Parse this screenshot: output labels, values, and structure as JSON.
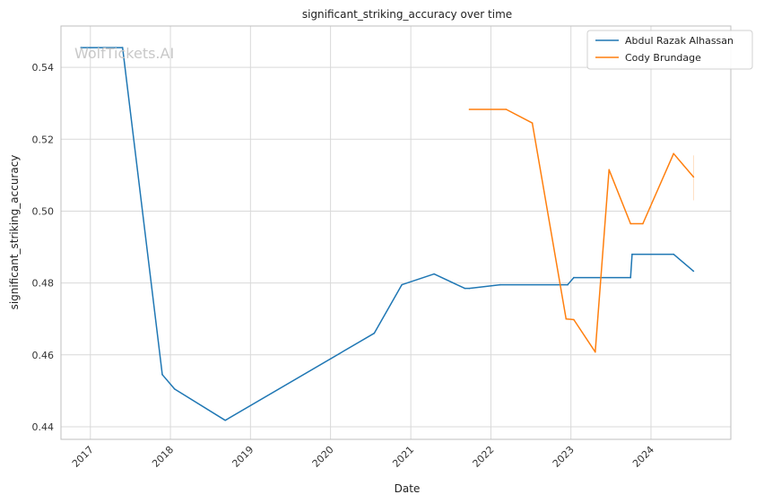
{
  "watermark": "WolfTickets.AI",
  "chart_data": {
    "type": "line",
    "title": "significant_striking_accuracy over time",
    "xlabel": "Date",
    "ylabel": "significant_striking_accuracy",
    "x_ticks": [
      "2017",
      "2018",
      "2019",
      "2020",
      "2021",
      "2022",
      "2023",
      "2024"
    ],
    "y_ticks": [
      "0.44",
      "0.46",
      "0.48",
      "0.50",
      "0.52",
      "0.54"
    ],
    "xlim": [
      "2016-08-20",
      "2024-12-30"
    ],
    "ylim": [
      0.4365,
      0.5515
    ],
    "grid": true,
    "legend_position": "top-right",
    "series": [
      {
        "name": "Abdul Razak Alhassan",
        "color": "#1f77b4",
        "points": [
          [
            "2016-11-19",
            0.5455
          ],
          [
            "2017-05-28",
            0.5455
          ],
          [
            "2017-11-25",
            0.4545
          ],
          [
            "2018-01-20",
            0.4505
          ],
          [
            "2018-09-08",
            0.4418
          ],
          [
            "2020-07-18",
            0.466
          ],
          [
            "2020-11-21",
            0.4795
          ],
          [
            "2021-04-17",
            0.4825
          ],
          [
            "2021-09-04",
            0.4785
          ],
          [
            "2021-09-25",
            0.4785
          ],
          [
            "2022-02-12",
            0.4795
          ],
          [
            "2022-12-17",
            0.4795
          ],
          [
            "2023-01-14",
            0.4815
          ],
          [
            "2023-09-30",
            0.4815
          ],
          [
            "2023-10-07",
            0.488
          ],
          [
            "2024-04-13",
            0.488
          ],
          [
            "2024-07-13",
            0.4833
          ]
        ]
      },
      {
        "name": "Cody Brundage",
        "color": "#ff7f0e",
        "points": [
          [
            "2021-09-25",
            0.5283
          ],
          [
            "2022-03-12",
            0.5283
          ],
          [
            "2022-07-09",
            0.5245
          ],
          [
            "2022-12-10",
            0.47
          ],
          [
            "2023-01-14",
            0.4698
          ],
          [
            "2023-04-22",
            0.4608
          ],
          [
            "2023-06-24",
            0.5115
          ],
          [
            "2023-09-30",
            0.4965
          ],
          [
            "2023-11-25",
            0.4965
          ],
          [
            "2024-04-13",
            0.516
          ],
          [
            "2024-07-13",
            0.5095
          ]
        ]
      }
    ]
  }
}
